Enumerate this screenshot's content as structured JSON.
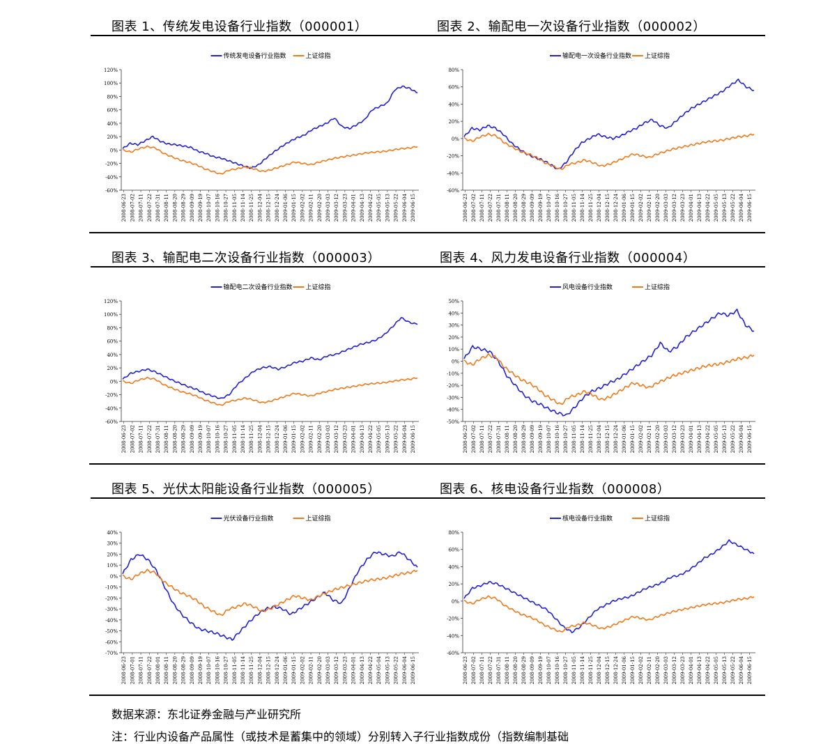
{
  "charts": [
    {
      "title": "图表 1、传统发电设备行业指数（000001）",
      "legend": [
        "传统发电设备行业指数",
        "上证综指"
      ],
      "ylim": [
        -60,
        120
      ],
      "ystep": 20,
      "xticks": [
        "2008-06-23",
        "2008-07-02",
        "2008-07-11",
        "2008-07-22",
        "2008-07-31",
        "2008-08-11",
        "2008-08-20",
        "2008-08-29",
        "2008-09-09",
        "2008-09-19",
        "2008-10-07",
        "2008-10-16",
        "2008-10-27",
        "2008-11-05",
        "2008-11-14",
        "2008-11-25",
        "2008-12-04",
        "2008-12-15",
        "2008-12-24",
        "2009-01-06",
        "2009-01-15",
        "2009-02-02",
        "2009-02-11",
        "2009-02-20",
        "2009-03-03",
        "2009-03-12",
        "2009-03-23",
        "2009-04-01",
        "2009-04-13",
        "2009-04-22",
        "2009-05-05",
        "2009-05-13",
        "2009-05-22",
        "2009-06-04",
        "2009-06-15"
      ],
      "series": [
        {
          "name": "传统发电设备行业指数",
          "color": "#1f1fd6",
          "values": [
            2,
            10,
            8,
            14,
            20,
            13,
            9,
            8,
            6,
            4,
            -2,
            -5,
            -10,
            -12,
            -16,
            -20,
            -24,
            -27,
            -22,
            -12,
            -3,
            5,
            12,
            18,
            22,
            30,
            35,
            40,
            48,
            35,
            32,
            38,
            45,
            60,
            65,
            70,
            90,
            95,
            92,
            85
          ]
        },
        {
          "name": "上证综指",
          "color": "#f07a1a",
          "values": [
            0,
            -3,
            2,
            5,
            3,
            -5,
            -10,
            -15,
            -18,
            -22,
            -28,
            -32,
            -36,
            -30,
            -28,
            -25,
            -28,
            -32,
            -30,
            -26,
            -22,
            -18,
            -20,
            -22,
            -18,
            -15,
            -12,
            -10,
            -8,
            -6,
            -4,
            -3,
            -2,
            0,
            2,
            3,
            5
          ]
        }
      ]
    },
    {
      "title": "图表 2、输配电一次设备行业指数（000002）",
      "legend": [
        "输配电一次设备行业指数",
        "上证综指"
      ],
      "ylim": [
        -60,
        80
      ],
      "ystep": 20,
      "xticks": [
        "2008-06-23",
        "2008-07-02",
        "2008-07-11",
        "2008-07-22",
        "2008-07-31",
        "2008-08-11",
        "2008-08-20",
        "2008-08-29",
        "2008-09-09",
        "2008-09-19",
        "2008-10-07",
        "2008-10-16",
        "2008-10-27",
        "2008-11-05",
        "2008-11-14",
        "2008-11-25",
        "2008-12-04",
        "2008-12-15",
        "2008-12-24",
        "2009-01-06",
        "2009-01-15",
        "2009-02-02",
        "2009-02-11",
        "2009-02-20",
        "2009-03-03",
        "2009-03-12",
        "2009-03-23",
        "2009-04-01",
        "2009-04-13",
        "2009-04-22",
        "2009-05-05",
        "2009-05-13",
        "2009-05-22",
        "2009-06-04",
        "2009-06-15"
      ],
      "series": [
        {
          "name": "输配电一次设备行业指数",
          "color": "#1f1fd6",
          "values": [
            2,
            12,
            10,
            15,
            12,
            5,
            -5,
            -12,
            -18,
            -22,
            -25,
            -30,
            -36,
            -28,
            -15,
            -5,
            0,
            5,
            2,
            0,
            3,
            8,
            12,
            18,
            22,
            15,
            12,
            20,
            28,
            35,
            40,
            45,
            50,
            55,
            62,
            68,
            60,
            56
          ]
        },
        {
          "name": "上证综指",
          "color": "#f07a1a",
          "values": [
            0,
            -3,
            2,
            5,
            3,
            -5,
            -10,
            -15,
            -18,
            -22,
            -28,
            -32,
            -36,
            -30,
            -28,
            -25,
            -28,
            -32,
            -30,
            -26,
            -22,
            -18,
            -20,
            -22,
            -18,
            -15,
            -12,
            -10,
            -8,
            -6,
            -4,
            -3,
            -2,
            0,
            2,
            3,
            5
          ]
        }
      ]
    },
    {
      "title": "图表 3、输配电二次设备行业指数（000003）",
      "legend": [
        "输配电二次设备行业指数",
        "上证综指"
      ],
      "ylim": [
        -60,
        120
      ],
      "ystep": 20,
      "xticks": [
        "2008-06-23",
        "2008-07-02",
        "2008-07-11",
        "2008-07-22",
        "2008-07-31",
        "2008-08-11",
        "2008-08-20",
        "2008-08-29",
        "2008-09-09",
        "2008-09-19",
        "2008-10-07",
        "2008-10-16",
        "2008-10-27",
        "2008-11-05",
        "2008-11-14",
        "2008-11-25",
        "2008-12-04",
        "2008-12-15",
        "2008-12-24",
        "2009-01-06",
        "2009-01-15",
        "2009-02-02",
        "2009-02-11",
        "2009-02-20",
        "2009-03-03",
        "2009-03-12",
        "2009-03-23",
        "2009-04-01",
        "2009-04-13",
        "2009-04-22",
        "2009-05-05",
        "2009-05-13",
        "2009-05-22",
        "2009-06-04",
        "2009-06-15"
      ],
      "series": [
        {
          "name": "输配电二次设备行业指数",
          "color": "#1f1fd6",
          "values": [
            3,
            12,
            15,
            18,
            14,
            8,
            2,
            -3,
            -8,
            -12,
            -18,
            -22,
            -26,
            -20,
            -5,
            5,
            15,
            20,
            22,
            18,
            22,
            28,
            30,
            35,
            32,
            38,
            40,
            45,
            50,
            55,
            58,
            62,
            70,
            82,
            95,
            88,
            85
          ]
        },
        {
          "name": "上证综指",
          "color": "#f07a1a",
          "values": [
            0,
            -3,
            2,
            5,
            3,
            -5,
            -10,
            -15,
            -18,
            -22,
            -28,
            -32,
            -36,
            -30,
            -28,
            -25,
            -28,
            -32,
            -30,
            -26,
            -22,
            -18,
            -20,
            -22,
            -18,
            -15,
            -12,
            -10,
            -8,
            -6,
            -4,
            -3,
            -2,
            0,
            2,
            3,
            5
          ]
        }
      ]
    },
    {
      "title": "图表 4、风力发电设备行业指数（000004）",
      "legend": [
        "风电设备行业指数",
        "上证综指"
      ],
      "ylim": [
        -50,
        50
      ],
      "ystep": 10,
      "xticks": [
        "2008-06-23",
        "2008-07-02",
        "2008-07-11",
        "2008-07-22",
        "2008-07-31",
        "2008-08-11",
        "2008-08-20",
        "2008-08-29",
        "2008-09-09",
        "2008-09-19",
        "2008-10-07",
        "2008-10-16",
        "2008-10-27",
        "2008-11-05",
        "2008-11-14",
        "2008-11-25",
        "2008-12-04",
        "2008-12-15",
        "2008-12-24",
        "2009-01-06",
        "2009-01-15",
        "2009-02-02",
        "2009-02-11",
        "2009-02-20",
        "2009-03-03",
        "2009-03-12",
        "2009-03-23",
        "2009-04-01",
        "2009-04-13",
        "2009-04-22",
        "2009-05-05",
        "2009-05-13",
        "2009-05-22",
        "2009-06-04",
        "2009-06-15"
      ],
      "series": [
        {
          "name": "风电设备行业指数",
          "color": "#1f1fd6",
          "values": [
            2,
            12,
            10,
            8,
            0,
            -12,
            -20,
            -28,
            -33,
            -36,
            -40,
            -43,
            -45,
            -38,
            -30,
            -25,
            -22,
            -18,
            -15,
            -10,
            -5,
            0,
            5,
            15,
            8,
            12,
            20,
            25,
            30,
            35,
            40,
            38,
            42,
            30,
            25
          ]
        },
        {
          "name": "上证综指",
          "color": "#f07a1a",
          "values": [
            0,
            -3,
            2,
            5,
            3,
            -5,
            -10,
            -15,
            -18,
            -22,
            -28,
            -32,
            -36,
            -30,
            -28,
            -25,
            -28,
            -32,
            -30,
            -26,
            -22,
            -18,
            -20,
            -22,
            -18,
            -15,
            -12,
            -10,
            -8,
            -6,
            -4,
            -3,
            -2,
            0,
            2,
            3,
            5
          ]
        }
      ]
    },
    {
      "title": "图表 5、光伏太阳能设备行业指数（000005）",
      "legend": [
        "光伏设备行业指数",
        "上证综指"
      ],
      "ylim": [
        -70,
        40
      ],
      "ystep": 10,
      "xticks": [
        "2008-06-23",
        "2008-07-01",
        "2008-07-11",
        "2008-07-22",
        "2008-08-01",
        "2008-08-11",
        "2008-08-20",
        "2008-08-29",
        "2008-09-09",
        "2008-09-19",
        "2008-10-07",
        "2008-10-16",
        "2008-10-27",
        "2008-11-05",
        "2008-11-14",
        "2008-11-25",
        "2008-12-04",
        "2008-12-15",
        "2008-12-24",
        "2009-01-06",
        "2009-01-15",
        "2009-02-02",
        "2009-02-11",
        "2009-02-20",
        "2009-03-03",
        "2009-03-12",
        "2009-03-23",
        "2009-04-01",
        "2009-04-13",
        "2009-04-22",
        "2009-05-04",
        "2009-05-13",
        "2009-05-22",
        "2009-06-04",
        "2009-06-15"
      ],
      "series": [
        {
          "name": "光伏设备行业指数",
          "color": "#1f1fd6",
          "values": [
            2,
            15,
            20,
            15,
            5,
            -10,
            -25,
            -35,
            -42,
            -48,
            -50,
            -52,
            -55,
            -58,
            -50,
            -42,
            -35,
            -30,
            -28,
            -30,
            -35,
            -30,
            -25,
            -20,
            -15,
            -22,
            -25,
            -10,
            5,
            15,
            22,
            20,
            18,
            22,
            15,
            8
          ]
        },
        {
          "name": "上证综指",
          "color": "#f07a1a",
          "values": [
            0,
            -3,
            2,
            5,
            3,
            -5,
            -10,
            -15,
            -18,
            -22,
            -28,
            -32,
            -36,
            -30,
            -28,
            -25,
            -28,
            -32,
            -30,
            -26,
            -22,
            -18,
            -20,
            -22,
            -18,
            -15,
            -12,
            -10,
            -8,
            -6,
            -4,
            -3,
            -2,
            0,
            2,
            3,
            5
          ]
        }
      ]
    },
    {
      "title": "图表 6、核电设备行业指数（000008）",
      "legend": [
        "核电设备行业指数",
        "上证综指"
      ],
      "ylim": [
        -60,
        80
      ],
      "ystep": 20,
      "xticks": [
        "2008-06-23",
        "2008-07-02",
        "2008-07-11",
        "2008-07-22",
        "2008-07-31",
        "2008-08-11",
        "2008-08-20",
        "2008-08-29",
        "2008-09-09",
        "2008-09-19",
        "2008-10-07",
        "2008-10-16",
        "2008-10-27",
        "2008-11-05",
        "2008-11-14",
        "2008-11-25",
        "2008-12-04",
        "2008-12-15",
        "2008-12-24",
        "2009-01-06",
        "2009-01-15",
        "2009-02-02",
        "2009-02-11",
        "2009-02-20",
        "2009-03-03",
        "2009-03-12",
        "2009-03-23",
        "2009-04-01",
        "2009-04-13",
        "2009-04-22",
        "2009-05-05",
        "2009-05-13",
        "2009-05-22",
        "2009-06-04",
        "2009-06-15"
      ],
      "series": [
        {
          "name": "核电设备行业指数",
          "color": "#1f1fd6",
          "values": [
            3,
            15,
            18,
            22,
            20,
            15,
            10,
            5,
            0,
            -5,
            -10,
            -20,
            -30,
            -36,
            -30,
            -20,
            -10,
            -5,
            0,
            3,
            5,
            10,
            15,
            18,
            22,
            28,
            30,
            35,
            42,
            50,
            55,
            62,
            70,
            65,
            60,
            55
          ]
        },
        {
          "name": "上证综指",
          "color": "#f07a1a",
          "values": [
            0,
            -3,
            2,
            5,
            3,
            -5,
            -10,
            -15,
            -18,
            -22,
            -28,
            -32,
            -36,
            -30,
            -28,
            -25,
            -28,
            -32,
            -30,
            -26,
            -22,
            -18,
            -20,
            -22,
            -18,
            -15,
            -12,
            -10,
            -8,
            -6,
            -4,
            -3,
            -2,
            0,
            2,
            3,
            5
          ]
        }
      ]
    }
  ],
  "chart_data": [
    {
      "type": "line",
      "title": "图表 1、传统发电设备行业指数（000001）",
      "ylim": [
        -60,
        120
      ]
    },
    {
      "type": "line",
      "title": "图表 2、输配电一次设备行业指数（000002）",
      "ylim": [
        -60,
        80
      ]
    },
    {
      "type": "line",
      "title": "图表 3、输配电二次设备行业指数（000003）",
      "ylim": [
        -60,
        120
      ]
    },
    {
      "type": "line",
      "title": "图表 4、风力发电设备行业指数（000004）",
      "ylim": [
        -50,
        50
      ]
    },
    {
      "type": "line",
      "title": "图表 5、光伏太阳能设备行业指数（000005）",
      "ylim": [
        -70,
        40
      ]
    },
    {
      "type": "line",
      "title": "图表 6、核电设备行业指数（000008）",
      "ylim": [
        -60,
        80
      ]
    }
  ],
  "footer": {
    "source": "数据来源：东北证券金融与产业研究所",
    "note": "注：行业内设备产品属性（或技术是蓄集中的领域）分别转入子行业指数成份（指数编制基础"
  }
}
